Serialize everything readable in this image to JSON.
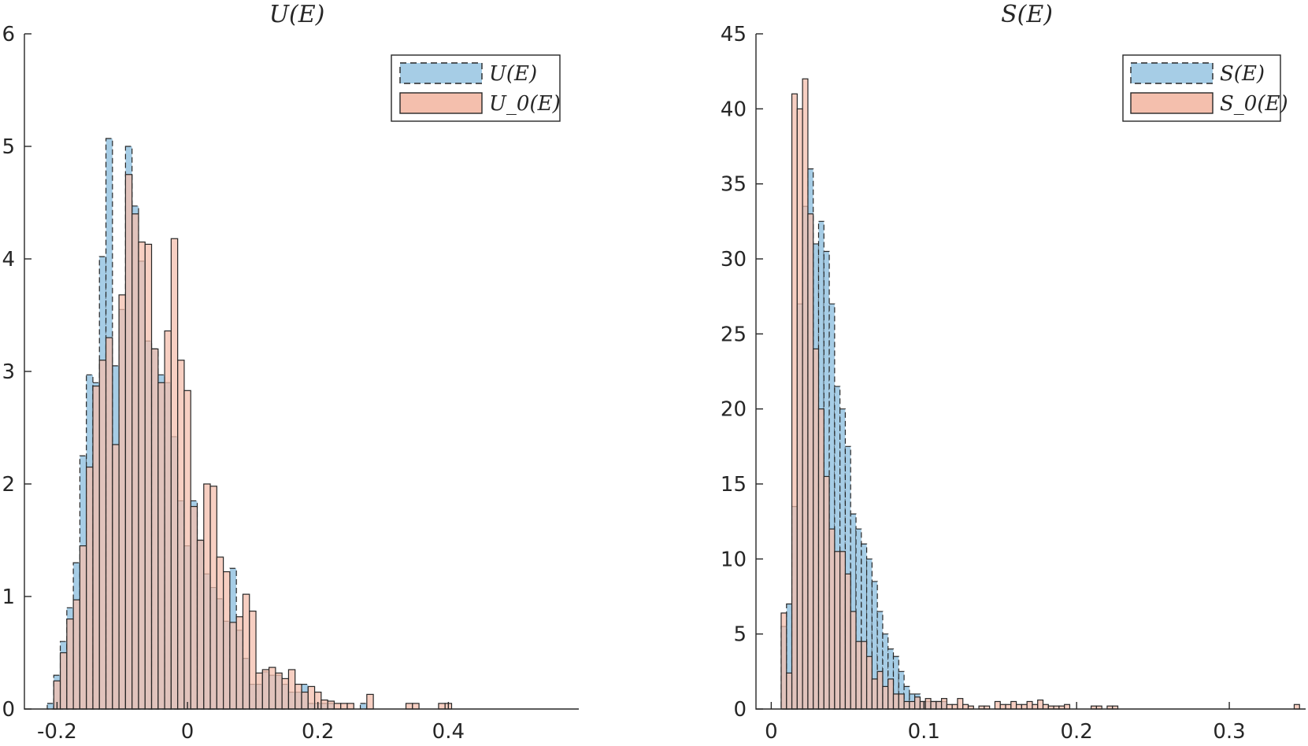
{
  "colors": {
    "series_a": "#a6cde6",
    "series_b": "#f4bfad",
    "axis": "#262626"
  },
  "chart_data": [
    {
      "type": "bar",
      "subtype": "histogram",
      "title": "U(E)",
      "xlim": [
        -0.25,
        0.6
      ],
      "ylim": [
        0,
        6
      ],
      "xticks": [
        -0.2,
        0,
        0.2,
        0.4
      ],
      "xtick_labels": [
        "-0.2",
        "0",
        "0.2",
        "0.4"
      ],
      "yticks": [
        0,
        1,
        2,
        3,
        4,
        5,
        6
      ],
      "ytick_labels": [
        "0",
        "1",
        "2",
        "3",
        "4",
        "5",
        "6"
      ],
      "grid": false,
      "legend_position": "top-right",
      "series": [
        {
          "name": "U(E)",
          "bin_width": 0.01,
          "x_start": -0.215,
          "values": [
            0.05,
            0.3,
            0.6,
            0.9,
            1.3,
            2.25,
            2.97,
            2.9,
            4.02,
            5.07,
            3.05,
            3.55,
            5.0,
            4.47,
            3.98,
            3.27,
            3.2,
            2.97,
            2.9,
            2.42,
            1.85,
            1.45,
            1.85,
            1.5,
            1.2,
            1.08,
            0.98,
            0.78,
            1.25,
            0.7,
            0.45,
            0.22,
            0.22,
            0.33,
            0.3,
            0.3,
            0.22,
            0.15,
            0.15,
            0.22,
            0.05,
            0.05,
            0.05,
            0.05,
            0,
            0,
            0,
            0,
            0.05,
            0,
            0,
            0,
            0,
            0,
            0,
            0,
            0,
            0,
            0,
            0,
            0,
            0,
            0,
            0,
            0,
            0,
            0,
            0,
            0,
            0,
            0,
            0,
            0,
            0,
            0,
            0
          ],
          "style": "dashed"
        },
        {
          "name": "U_0(E)",
          "bin_width": 0.01,
          "x_start": -0.215,
          "values": [
            0,
            0.25,
            0.5,
            0.8,
            0.97,
            1.45,
            2.15,
            2.87,
            3.1,
            3.3,
            2.35,
            3.68,
            4.75,
            4.4,
            4.15,
            4.13,
            3.2,
            2.9,
            3.36,
            4.18,
            3.1,
            2.83,
            1.8,
            1.5,
            2.0,
            1.98,
            1.35,
            1.22,
            0.77,
            0.82,
            1.02,
            0.87,
            0.32,
            0.35,
            0.37,
            0.32,
            0.27,
            0.35,
            0.22,
            0.15,
            0.2,
            0.15,
            0.08,
            0.07,
            0.05,
            0.05,
            0.05,
            0,
            0,
            0.13,
            0,
            0,
            0,
            0,
            0,
            0.05,
            0.05,
            0,
            0,
            0,
            0.05,
            0.05,
            0,
            0,
            0,
            0,
            0,
            0,
            0,
            0,
            0,
            0,
            0,
            0,
            0,
            0
          ],
          "style": "solid"
        }
      ]
    },
    {
      "type": "bar",
      "subtype": "histogram",
      "title": "S(E)",
      "xlim": [
        -0.01,
        0.35
      ],
      "ylim": [
        0,
        45
      ],
      "xticks": [
        0,
        0.1,
        0.2,
        0.3
      ],
      "xtick_labels": [
        "0",
        "0.1",
        "0.2",
        "0.3"
      ],
      "yticks": [
        0,
        5,
        10,
        15,
        20,
        25,
        30,
        35,
        40,
        45
      ],
      "ytick_labels": [
        "0",
        "5",
        "10",
        "15",
        "20",
        "25",
        "30",
        "35",
        "40",
        "45"
      ],
      "grid": false,
      "legend_position": "top-right",
      "series": [
        {
          "name": "S(E)",
          "bin_width": 0.0035,
          "x_start": 0.0065,
          "values": [
            5.5,
            7.0,
            13.5,
            27.0,
            33.5,
            36.0,
            31.0,
            32.5,
            30.5,
            27.0,
            21.5,
            20.0,
            17.5,
            13.0,
            12.0,
            11.0,
            10.0,
            8.5,
            6.5,
            5.0,
            4.0,
            3.5,
            2.5,
            1.5,
            1.0,
            1.0,
            0.5,
            0.5,
            0.5,
            0.5,
            0.5,
            0,
            0,
            0,
            0,
            0,
            0,
            0,
            0,
            0,
            0,
            0,
            0,
            0,
            0,
            0,
            0,
            0,
            0,
            0,
            0,
            0,
            0,
            0,
            0,
            0,
            0,
            0,
            0,
            0,
            0,
            0,
            0,
            0,
            0,
            0,
            0,
            0,
            0,
            0,
            0,
            0,
            0,
            0,
            0,
            0,
            0,
            0,
            0,
            0,
            0,
            0,
            0,
            0,
            0,
            0,
            0,
            0,
            0,
            0,
            0,
            0,
            0,
            0,
            0,
            0,
            0,
            0,
            0,
            0
          ],
          "style": "dashed"
        },
        {
          "name": "S_0(E)",
          "bin_width": 0.0035,
          "x_start": 0.0065,
          "values": [
            6.4,
            2.4,
            41.0,
            40.0,
            42.0,
            33.0,
            24.0,
            20.0,
            15.5,
            12.0,
            10.5,
            10.5,
            9.0,
            6.5,
            4.5,
            4.5,
            3.5,
            2.0,
            2.5,
            1.5,
            2.0,
            1.0,
            1.0,
            0.5,
            0.5,
            0.8,
            0.5,
            0.7,
            0.5,
            0.5,
            0.7,
            0.3,
            0.3,
            0.7,
            0.3,
            0.2,
            0,
            0.2,
            0.2,
            0,
            0.5,
            0.3,
            0.3,
            0.5,
            0.3,
            0.3,
            0.5,
            0.3,
            0.6,
            0.3,
            0.2,
            0.2,
            0.2,
            0.3,
            0,
            0,
            0,
            0,
            0.2,
            0.2,
            0,
            0.2,
            0.2,
            0,
            0,
            0,
            0,
            0,
            0,
            0,
            0,
            0,
            0,
            0,
            0,
            0,
            0,
            0,
            0,
            0,
            0,
            0,
            0,
            0,
            0,
            0,
            0,
            0,
            0,
            0,
            0,
            0,
            0,
            0,
            0,
            0,
            0.3,
            0,
            0,
            0
          ],
          "style": "solid"
        }
      ]
    }
  ]
}
